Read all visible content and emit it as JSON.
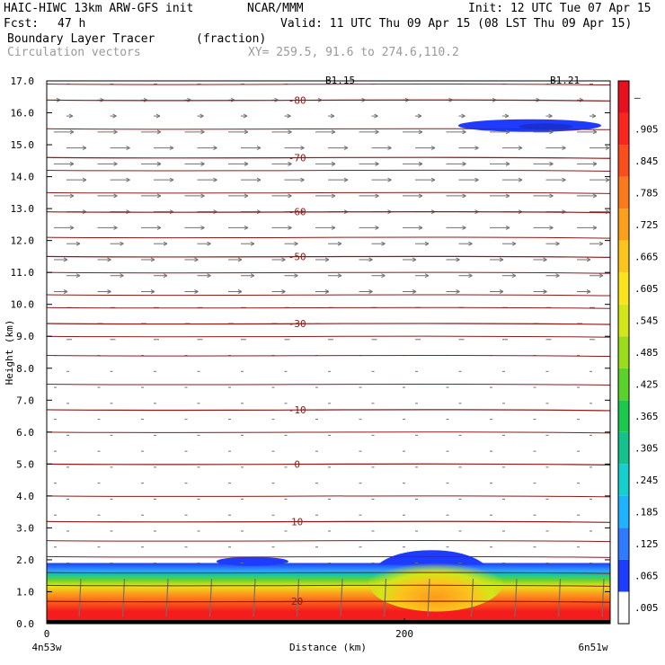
{
  "header": {
    "model": "HAIC-HIWC 13km ARW-GFS init",
    "org": "NCAR/MMM",
    "init": "Init: 12 UTC Tue 07 Apr 15",
    "fcst_label": "Fcst:",
    "fcst_value": "47 h",
    "valid": "Valid: 11 UTC Thu 09 Apr 15 (08 LST Thu 09 Apr 15)",
    "field": "Boundary Layer Tracer",
    "units": "(fraction)",
    "field2": "Circulation vectors",
    "xy": "XY= 259.5, 91.6 to 274.6,110.2"
  },
  "chart_data": {
    "type": "heatmap",
    "title": "Boundary Layer Tracer",
    "xlabel": "Distance (km)",
    "ylabel": "Height (km)",
    "xlim": [
      0,
      315
    ],
    "ylim": [
      0,
      17
    ],
    "x_ticks": [
      {
        "value": 0,
        "label": "0"
      },
      {
        "value": 200,
        "label": "200"
      }
    ],
    "x_end_labels": {
      "left": "4n53w",
      "right": "6n51w"
    },
    "y_ticks": [
      "0.0",
      "1.0",
      "2.0",
      "3.0",
      "4.0",
      "5.0",
      "6.0",
      "7.0",
      "8.0",
      "9.0",
      "10.0",
      "11.0",
      "12.0",
      "13.0",
      "14.0",
      "15.0",
      "16.0",
      "17.0"
    ],
    "colorbar": {
      "labels": [
        ".005",
        ".065",
        ".125",
        ".185",
        ".245",
        ".305",
        ".365",
        ".425",
        ".485",
        ".545",
        ".605",
        ".665",
        ".725",
        ".785",
        ".845",
        ".905",
        "–"
      ],
      "colors": [
        "#ffffff",
        "#1e3cff",
        "#2f7bff",
        "#1fb3ff",
        "#16d0d0",
        "#13c28c",
        "#1dc850",
        "#5ad22a",
        "#9adc1c",
        "#d2e619",
        "#fce41c",
        "#fcc41c",
        "#fca01c",
        "#fc7a1c",
        "#fc4e1c",
        "#f8261c",
        "#e8101c"
      ]
    },
    "tracer_layer_top_km": 1.9,
    "tracer_bump": {
      "x_km": 215,
      "top_km": 2.3
    },
    "upper_tracer_blob": {
      "x_start_km": 230,
      "x_end_km": 310,
      "height_km": 15.6
    },
    "temperature_contours": [
      {
        "label": "-80",
        "height_km": 16.4
      },
      {
        "label": "-70",
        "height_km": 14.6
      },
      {
        "label": "-60",
        "height_km": 12.9
      },
      {
        "label": "-50",
        "height_km": 11.5
      },
      {
        "label": "-30",
        "height_km": 9.4
      },
      {
        "label": "-10",
        "height_km": 6.7
      },
      {
        "label": "0",
        "height_km": 5.0
      },
      {
        "label": "10",
        "height_km": 3.2
      },
      {
        "label": "20",
        "height_km": 0.7
      }
    ],
    "top_labels": [
      "B1.15",
      "B1.21"
    ],
    "grid": false,
    "legend": "colorbar-right"
  }
}
